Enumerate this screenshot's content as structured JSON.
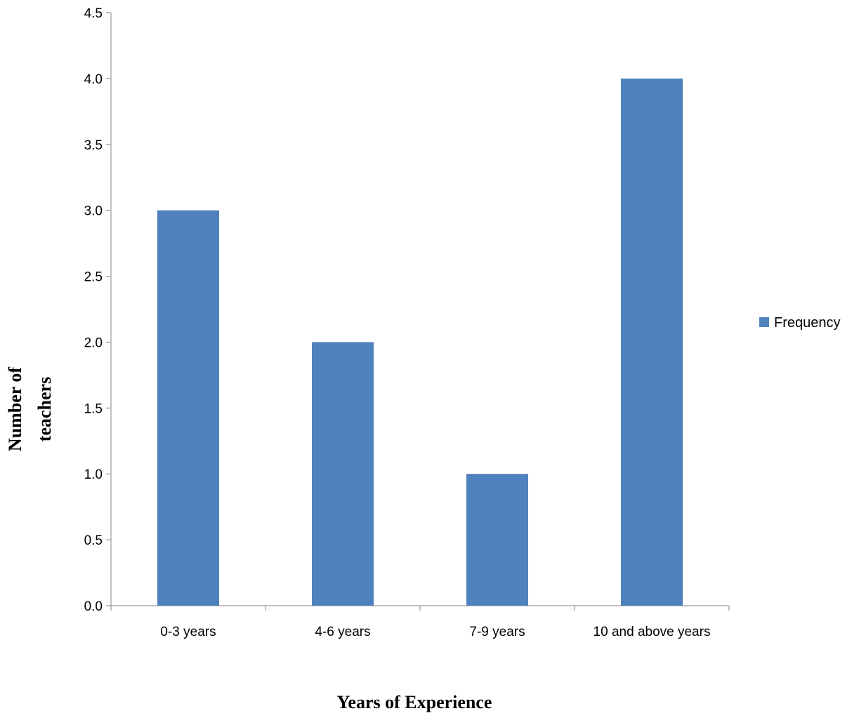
{
  "chart_data": {
    "type": "bar",
    "categories": [
      "0-3 years",
      "4-6 years",
      "7-9 years",
      "10 and above years"
    ],
    "series": [
      {
        "name": "Frequency",
        "values": [
          3,
          2,
          1,
          4
        ]
      }
    ],
    "title": "",
    "xlabel": "Years of Experience",
    "ylabel_lines": [
      "Number of",
      "teachers"
    ],
    "ylim": [
      0,
      4.5
    ],
    "yticks": [
      "0.0",
      "0.5",
      "1.0",
      "1.5",
      "2.0",
      "2.5",
      "3.0",
      "3.5",
      "4.0",
      "4.5"
    ],
    "grid": false,
    "legend_position": "right",
    "colors": {
      "bar": "#4F81BD",
      "axis": "#868686"
    }
  }
}
